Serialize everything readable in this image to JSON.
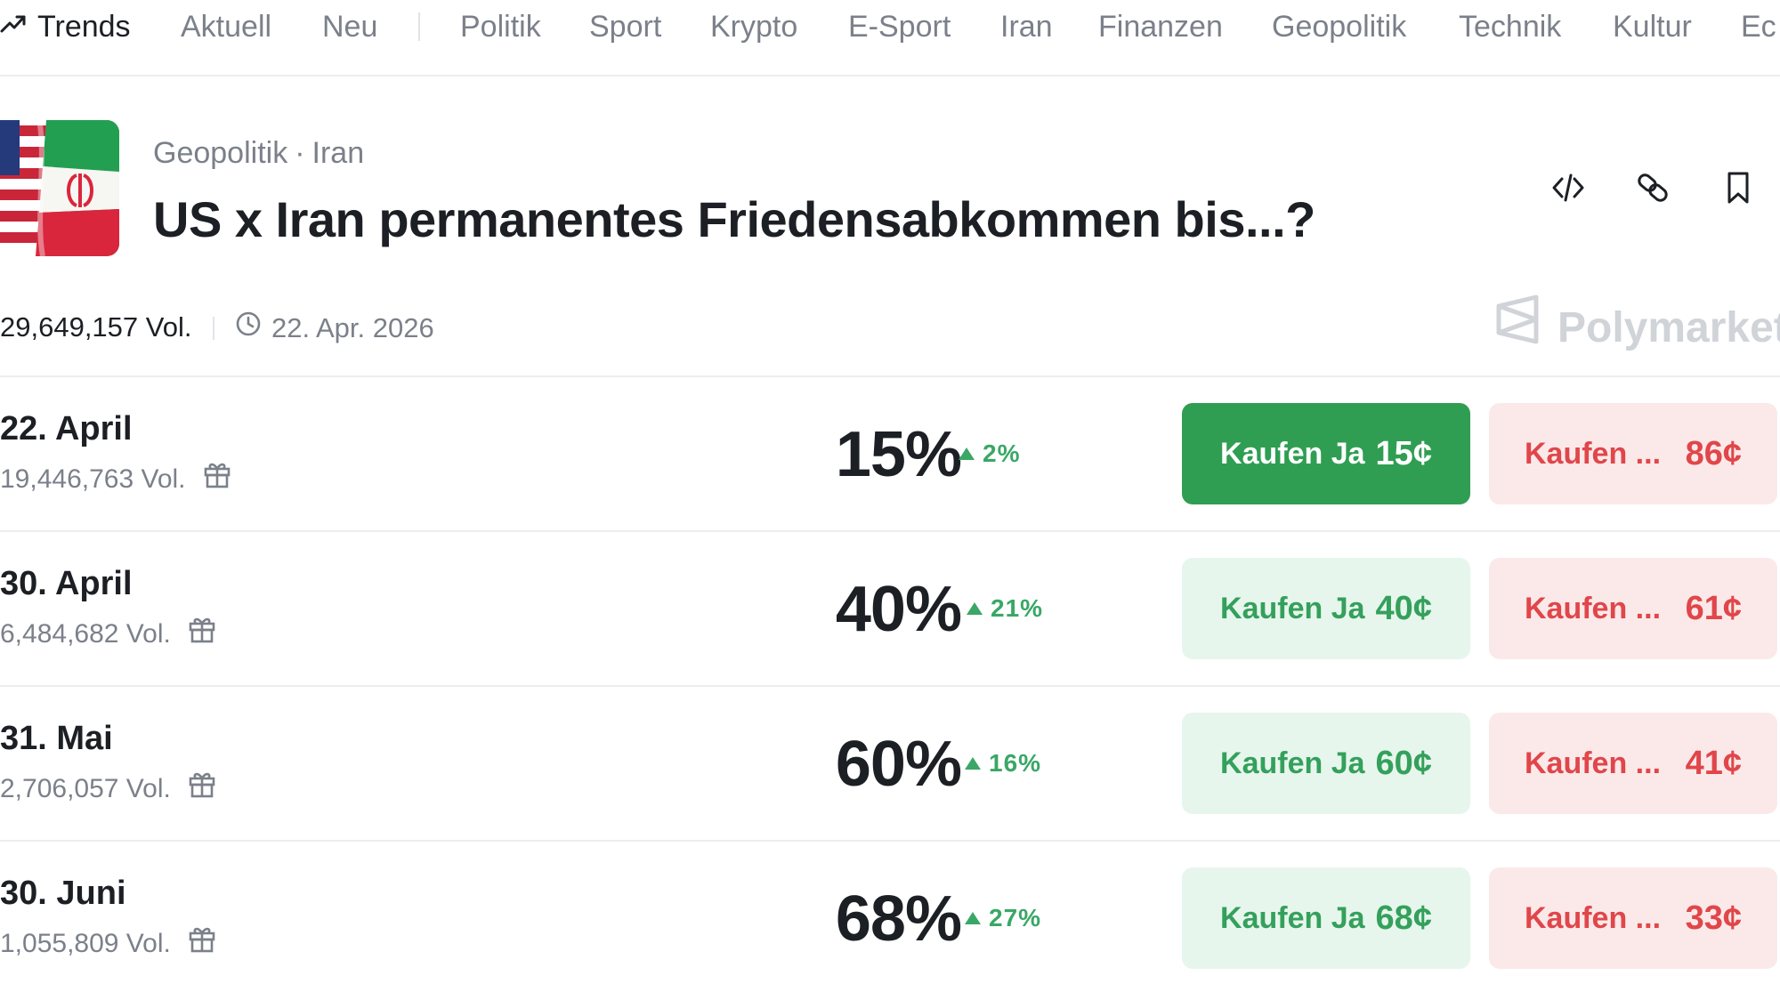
{
  "nav": {
    "trends_label": "Trends",
    "items": [
      "Aktuell",
      "Neu",
      "Politik",
      "Sport",
      "Krypto",
      "E-Sport",
      "Iran",
      "Finanzen",
      "Geopolitik",
      "Technik",
      "Kultur",
      "Ec"
    ]
  },
  "market": {
    "breadcrumb": [
      "Geopolitik",
      "Iran"
    ],
    "breadcrumb_sep": "·",
    "title": "US x Iran permanentes Friedensabkommen bis...?",
    "volume": "29,649,157 Vol.",
    "end_date": "22. Apr. 2026",
    "brand": "Polymarket"
  },
  "header_icons": [
    "embed-code-icon",
    "link-icon",
    "bookmark-icon"
  ],
  "outcomes": [
    {
      "date": "22. April",
      "volume": "19,446,763 Vol.",
      "probability": "15%",
      "change": "2%",
      "yes_label": "Kaufen Ja",
      "yes_price": "15¢",
      "no_label": "Kaufen ...",
      "no_price": "86¢",
      "yes_active": true
    },
    {
      "date": "30. April",
      "volume": "6,484,682 Vol.",
      "probability": "40%",
      "change": "21%",
      "yes_label": "Kaufen Ja",
      "yes_price": "40¢",
      "no_label": "Kaufen ...",
      "no_price": "61¢",
      "yes_active": false
    },
    {
      "date": "31. Mai",
      "volume": "2,706,057 Vol.",
      "probability": "60%",
      "change": "16%",
      "yes_label": "Kaufen Ja",
      "yes_price": "60¢",
      "no_label": "Kaufen ...",
      "no_price": "41¢",
      "yes_active": false
    },
    {
      "date": "30. Juni",
      "volume": "1,055,809 Vol.",
      "probability": "68%",
      "change": "27%",
      "yes_label": "Kaufen Ja",
      "yes_price": "68¢",
      "no_label": "Kaufen ...",
      "no_price": "33¢",
      "yes_active": false
    }
  ],
  "colors": {
    "yes_active_bg": "#2f9e52",
    "yes_bg": "#e7f6ec",
    "yes_text": "#34a05c",
    "no_bg": "#fbe9e9",
    "no_text": "#e0464a",
    "change_up": "#3aa766"
  }
}
